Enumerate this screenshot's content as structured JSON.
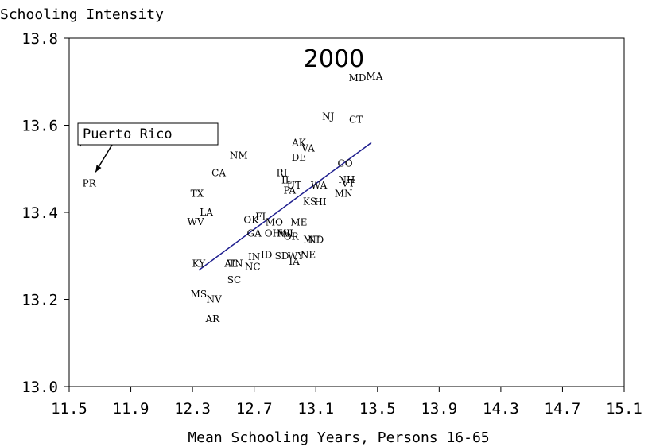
{
  "chart_data": {
    "type": "scatter",
    "title": "2000",
    "xlabel": "Mean Schooling Years, Persons 16-65",
    "ylabel": "Schooling Intensity",
    "xlim": [
      11.5,
      15.1
    ],
    "ylim": [
      13.0,
      13.8
    ],
    "x_ticks": [
      "11.5",
      "11.9",
      "12.3",
      "12.7",
      "13.1",
      "13.5",
      "13.9",
      "14.3",
      "14.7",
      "15.1"
    ],
    "y_ticks": [
      "13.0",
      "13.2",
      "13.4",
      "13.6",
      "13.8"
    ],
    "grid": false,
    "line_color": "#1f1f8f",
    "points": [
      {
        "label": "PR",
        "x": 11.63,
        "y": 13.467
      },
      {
        "label": "MD",
        "x": 13.37,
        "y": 13.709
      },
      {
        "label": "MA",
        "x": 13.48,
        "y": 13.712
      },
      {
        "label": "NJ",
        "x": 13.18,
        "y": 13.62
      },
      {
        "label": "CT",
        "x": 13.36,
        "y": 13.613
      },
      {
        "label": "NM",
        "x": 12.6,
        "y": 13.531
      },
      {
        "label": "CA",
        "x": 12.47,
        "y": 13.49
      },
      {
        "label": "AK",
        "x": 12.99,
        "y": 13.56
      },
      {
        "label": "VA",
        "x": 13.05,
        "y": 13.547
      },
      {
        "label": "DE",
        "x": 12.99,
        "y": 13.526
      },
      {
        "label": "CO",
        "x": 13.29,
        "y": 13.512
      },
      {
        "label": "RI",
        "x": 12.88,
        "y": 13.49
      },
      {
        "label": "IL",
        "x": 12.91,
        "y": 13.474
      },
      {
        "label": "UT",
        "x": 12.96,
        "y": 13.462
      },
      {
        "label": "WA",
        "x": 13.12,
        "y": 13.462
      },
      {
        "label": "NH",
        "x": 13.3,
        "y": 13.475
      },
      {
        "label": "VT",
        "x": 13.31,
        "y": 13.467
      },
      {
        "label": "PA",
        "x": 12.93,
        "y": 13.45
      },
      {
        "label": "MN",
        "x": 13.28,
        "y": 13.443
      },
      {
        "label": "TX",
        "x": 12.33,
        "y": 13.443
      },
      {
        "label": "KS",
        "x": 13.06,
        "y": 13.425
      },
      {
        "label": "HI",
        "x": 13.13,
        "y": 13.424
      },
      {
        "label": "LA",
        "x": 12.39,
        "y": 13.4
      },
      {
        "label": "WV",
        "x": 12.32,
        "y": 13.378
      },
      {
        "label": "OK",
        "x": 12.68,
        "y": 13.383
      },
      {
        "label": "FL",
        "x": 12.75,
        "y": 13.39
      },
      {
        "label": "MO",
        "x": 12.83,
        "y": 13.377
      },
      {
        "label": "ME",
        "x": 12.99,
        "y": 13.377
      },
      {
        "label": "GA",
        "x": 12.7,
        "y": 13.352
      },
      {
        "label": "OH",
        "x": 12.82,
        "y": 13.352
      },
      {
        "label": "MI",
        "x": 12.89,
        "y": 13.352
      },
      {
        "label": "WI",
        "x": 12.91,
        "y": 13.352
      },
      {
        "label": "OR",
        "x": 12.94,
        "y": 13.344
      },
      {
        "label": "MT",
        "x": 13.07,
        "y": 13.337
      },
      {
        "label": "ND",
        "x": 13.1,
        "y": 13.337
      },
      {
        "label": "IN",
        "x": 12.7,
        "y": 13.298
      },
      {
        "label": "ID",
        "x": 12.78,
        "y": 13.302
      },
      {
        "label": "SD",
        "x": 12.88,
        "y": 13.3
      },
      {
        "label": "WY",
        "x": 12.97,
        "y": 13.3
      },
      {
        "label": "NE",
        "x": 13.05,
        "y": 13.302
      },
      {
        "label": "IA",
        "x": 12.96,
        "y": 13.287
      },
      {
        "label": "KY",
        "x": 12.34,
        "y": 13.282
      },
      {
        "label": "AL",
        "x": 12.55,
        "y": 13.282
      },
      {
        "label": "TN",
        "x": 12.58,
        "y": 13.282
      },
      {
        "label": "NC",
        "x": 12.69,
        "y": 13.275
      },
      {
        "label": "SC",
        "x": 12.57,
        "y": 13.245
      },
      {
        "label": "MS",
        "x": 12.34,
        "y": 13.212
      },
      {
        "label": "NV",
        "x": 12.44,
        "y": 13.2
      },
      {
        "label": "AR",
        "x": 12.43,
        "y": 13.155
      }
    ],
    "fit_line": {
      "x": [
        12.34,
        13.46
      ],
      "y": [
        13.267,
        13.56
      ]
    },
    "annotations": [
      {
        "text": "Puerto Rico",
        "target": "PR"
      }
    ]
  }
}
